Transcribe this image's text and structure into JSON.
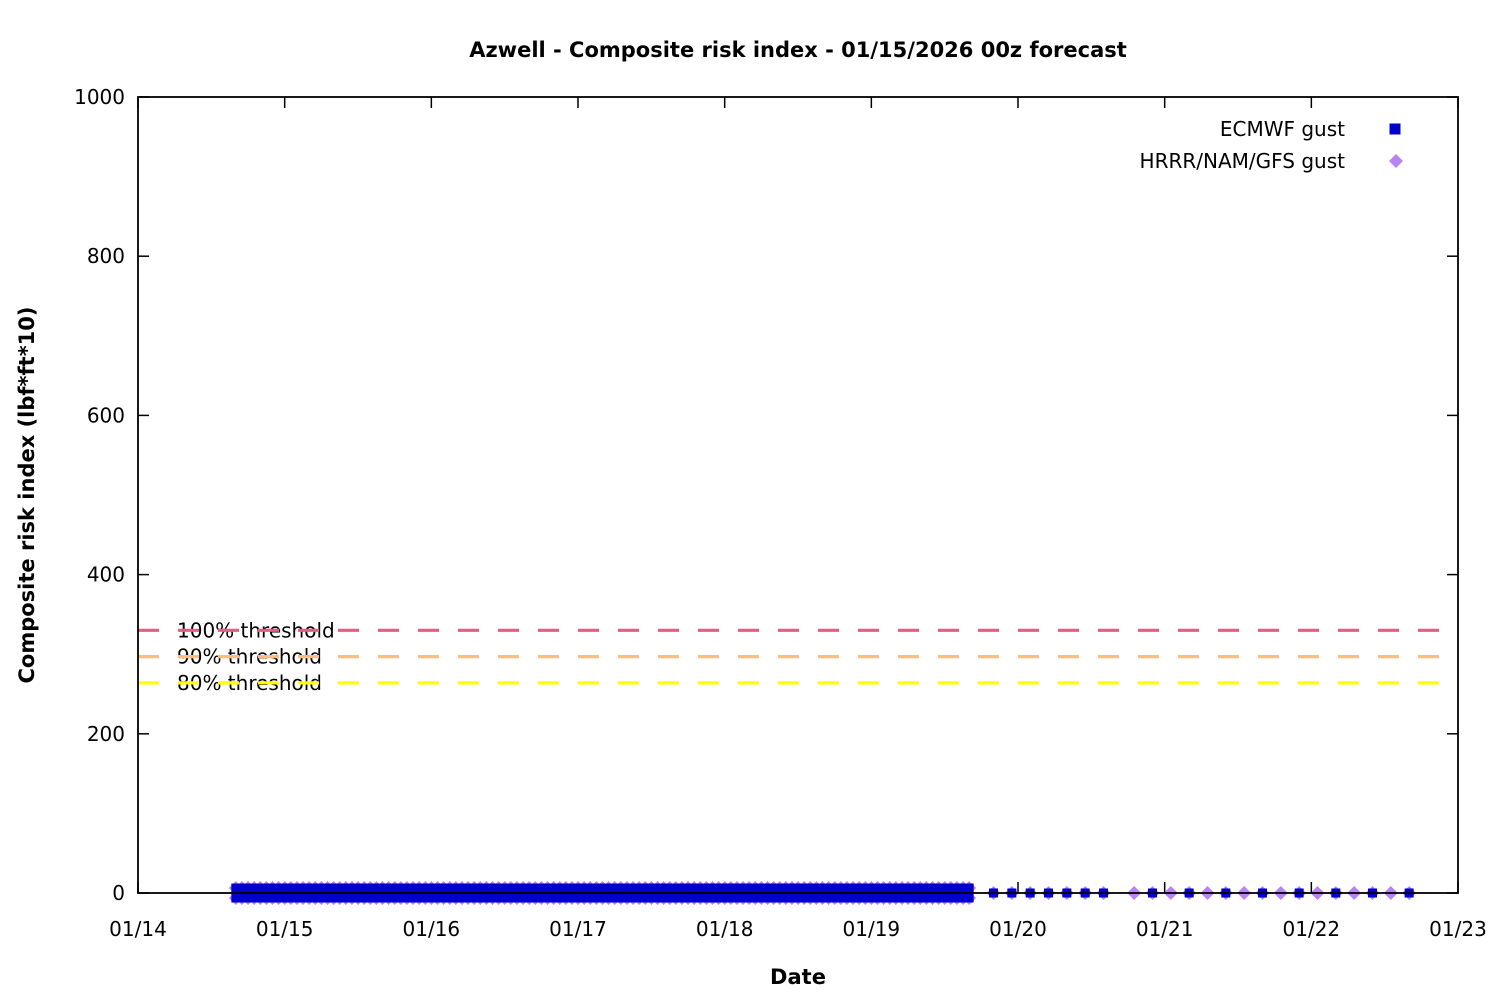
{
  "chart_data": {
    "type": "scatter",
    "title": "Azwell - Composite risk index - 01/15/2026 00z forecast",
    "xlabel": "Date",
    "ylabel": "Composite risk index (lbf*ft*10)",
    "x_tick_labels": [
      "01/14",
      "01/15",
      "01/16",
      "01/17",
      "01/18",
      "01/19",
      "01/20",
      "01/21",
      "01/22",
      "01/23"
    ],
    "x_tick_days": [
      0,
      1,
      2,
      3,
      4,
      5,
      6,
      7,
      8,
      9
    ],
    "y_ticks": [
      0,
      200,
      400,
      600,
      800,
      1000
    ],
    "xlim_days": [
      0,
      9
    ],
    "ylim": [
      0,
      1000
    ],
    "grid": false,
    "legend_position": "top-right",
    "thresholds": [
      {
        "label": "100% threshold",
        "value": 330,
        "color": "#e0607f"
      },
      {
        "label": "90% threshold",
        "value": 297,
        "color": "#fbbd80"
      },
      {
        "label": "80% threshold",
        "value": 264,
        "color": "#ffff00"
      }
    ],
    "series": [
      {
        "name": "ECMWF gust",
        "marker": "square",
        "color": "#0000cd",
        "value": 0,
        "segments": [
          {
            "start_day": 0.667,
            "end_day": 5.708,
            "step_hours": 1
          },
          {
            "start_day": 5.833,
            "end_day": 6.667,
            "step_hours": 3
          },
          {
            "start_day": 6.917,
            "end_day": 8.667,
            "step_hours": 6
          }
        ]
      },
      {
        "name": "HRRR/NAM/GFS gust",
        "marker": "diamond",
        "color": "#b983f5",
        "value": 0,
        "segments": [
          {
            "start_day": 0.667,
            "end_day": 5.708,
            "step_hours": 1
          },
          {
            "start_day": 5.833,
            "end_day": 6.667,
            "step_hours": 3
          },
          {
            "start_day": 6.792,
            "end_day": 8.667,
            "step_hours": 3
          }
        ]
      }
    ]
  }
}
